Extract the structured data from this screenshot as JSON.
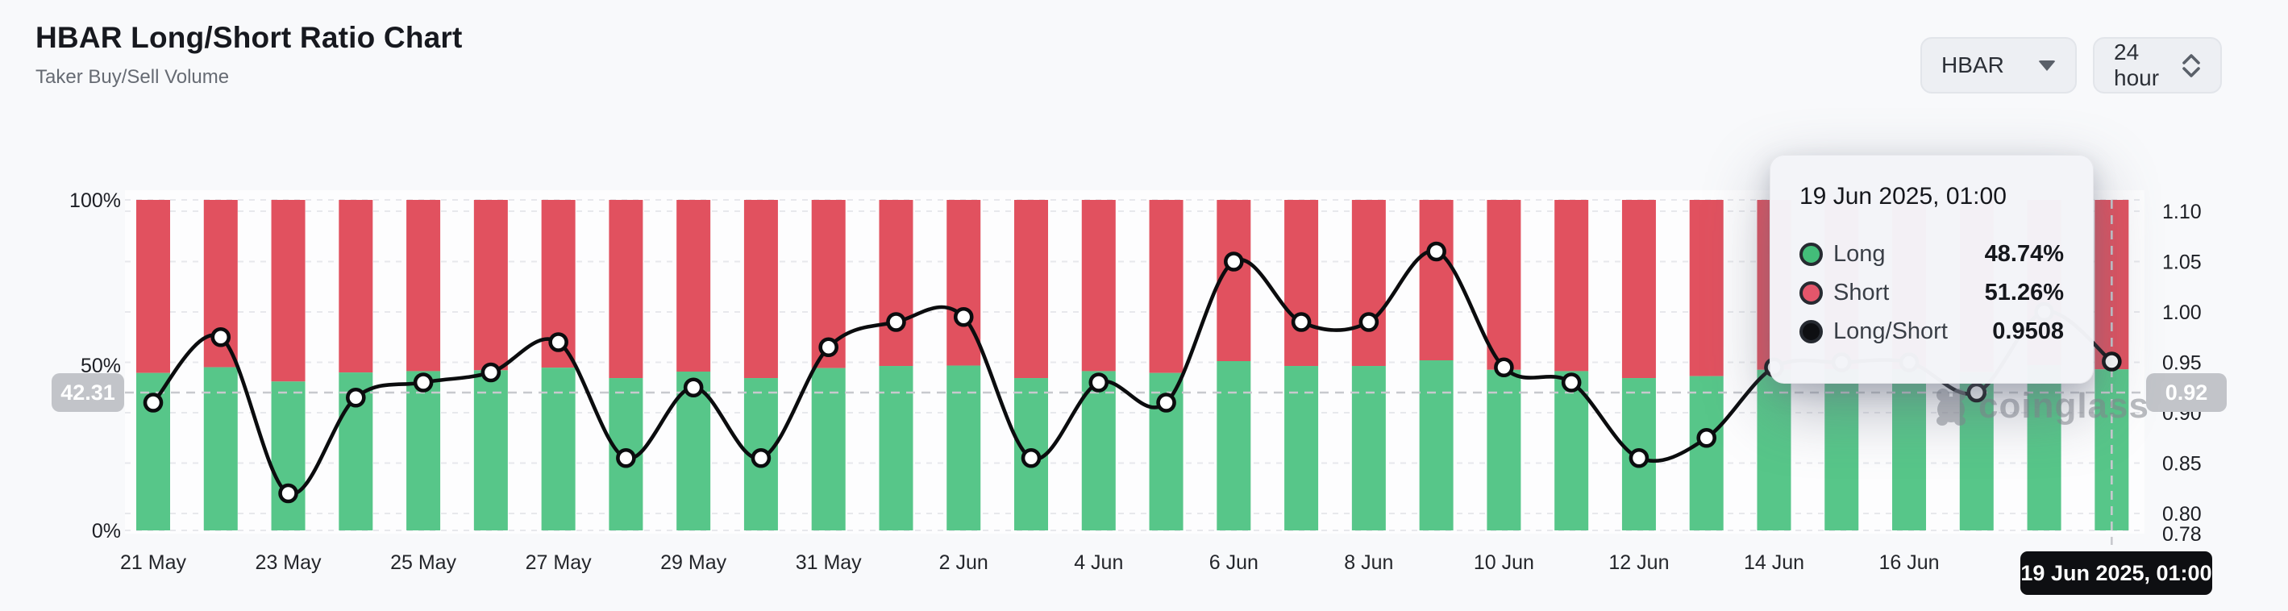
{
  "header": {
    "title": "HBAR Long/Short Ratio Chart",
    "subtitle": "Taker Buy/Sell Volume"
  },
  "controls": {
    "symbol": {
      "value": "HBAR"
    },
    "interval": {
      "value": "24 hour"
    }
  },
  "chart_data": {
    "type": "bar+line",
    "title": "HBAR Long/Short Ratio Chart",
    "categories": [
      "21 May",
      "22 May",
      "23 May",
      "24 May",
      "25 May",
      "26 May",
      "27 May",
      "28 May",
      "29 May",
      "30 May",
      "31 May",
      "1 Jun",
      "2 Jun",
      "3 Jun",
      "4 Jun",
      "5 Jun",
      "6 Jun",
      "7 Jun",
      "8 Jun",
      "9 Jun",
      "10 Jun",
      "11 Jun",
      "12 Jun",
      "13 Jun",
      "14 Jun",
      "15 Jun",
      "16 Jun",
      "17 Jun",
      "18 Jun",
      "19 Jun"
    ],
    "x_tick_labels": [
      "21 May",
      "23 May",
      "25 May",
      "27 May",
      "29 May",
      "31 May",
      "2 Jun",
      "4 Jun",
      "6 Jun",
      "8 Jun",
      "10 Jun",
      "12 Jun",
      "14 Jun",
      "16 Jun"
    ],
    "series": [
      {
        "name": "Long",
        "type": "bar",
        "unit": "%",
        "color": "#57c689",
        "values": [
          47.64,
          49.37,
          45.05,
          47.78,
          48.19,
          48.45,
          49.24,
          46.09,
          48.05,
          46.09,
          49.11,
          49.75,
          49.87,
          46.09,
          48.19,
          47.64,
          51.22,
          49.75,
          49.75,
          51.46,
          48.59,
          48.19,
          46.09,
          46.67,
          48.59,
          48.72,
          48.72,
          47.92,
          50.0,
          48.74
        ]
      },
      {
        "name": "Short",
        "type": "bar",
        "unit": "%",
        "color": "#e1515f",
        "values": [
          52.36,
          50.63,
          54.95,
          52.22,
          51.81,
          51.55,
          50.76,
          53.91,
          51.95,
          53.91,
          50.89,
          50.25,
          50.13,
          53.91,
          51.81,
          52.36,
          48.78,
          50.25,
          50.25,
          48.54,
          51.41,
          51.81,
          53.91,
          53.33,
          51.41,
          51.28,
          51.28,
          52.08,
          50.0,
          51.26
        ]
      },
      {
        "name": "Long/Short",
        "type": "line",
        "axis": "right",
        "color": "#0b0c0e",
        "values": [
          0.91,
          0.975,
          0.82,
          0.915,
          0.93,
          0.94,
          0.97,
          0.855,
          0.925,
          0.855,
          0.965,
          0.99,
          0.995,
          0.855,
          0.93,
          0.91,
          1.05,
          0.99,
          0.99,
          1.06,
          0.945,
          0.93,
          0.855,
          0.875,
          0.945,
          0.95,
          0.95,
          0.92,
          1.0,
          0.9508
        ]
      }
    ],
    "left_axis": {
      "tick_values": [
        100,
        50,
        0
      ],
      "tick_labels": [
        "100%",
        "50%",
        "0%"
      ],
      "range": [
        0,
        100
      ]
    },
    "right_axis": {
      "grid_ticks": [
        1.1,
        1.05,
        1.0,
        0.95,
        0.9,
        0.85,
        0.8
      ],
      "label_ticks": [
        "1.10",
        "1.05",
        "1.00",
        "0.95",
        "0.90",
        "0.85",
        "0.80",
        "0.78"
      ],
      "range": [
        0.783,
        1.111
      ]
    },
    "grid": "dashed-horizontal",
    "legend_position": "tooltip-only"
  },
  "crosshair": {
    "ratio_value": 0.92,
    "percent_value": 42.31,
    "left_badge": "42.31",
    "right_badge": "0.92",
    "x_label": "19 Jun 2025, 01:00"
  },
  "tooltip": {
    "title": "19 Jun 2025, 01:00",
    "rows": [
      {
        "label": "Long",
        "value": "48.74%",
        "dot_color": "#43bd79"
      },
      {
        "label": "Short",
        "value": "51.26%",
        "dot_color": "#e4566b"
      },
      {
        "label": "Long/Short",
        "value": "0.9508",
        "dot_color": "#0e0f12"
      }
    ]
  },
  "watermark": {
    "text": "coinglass"
  }
}
